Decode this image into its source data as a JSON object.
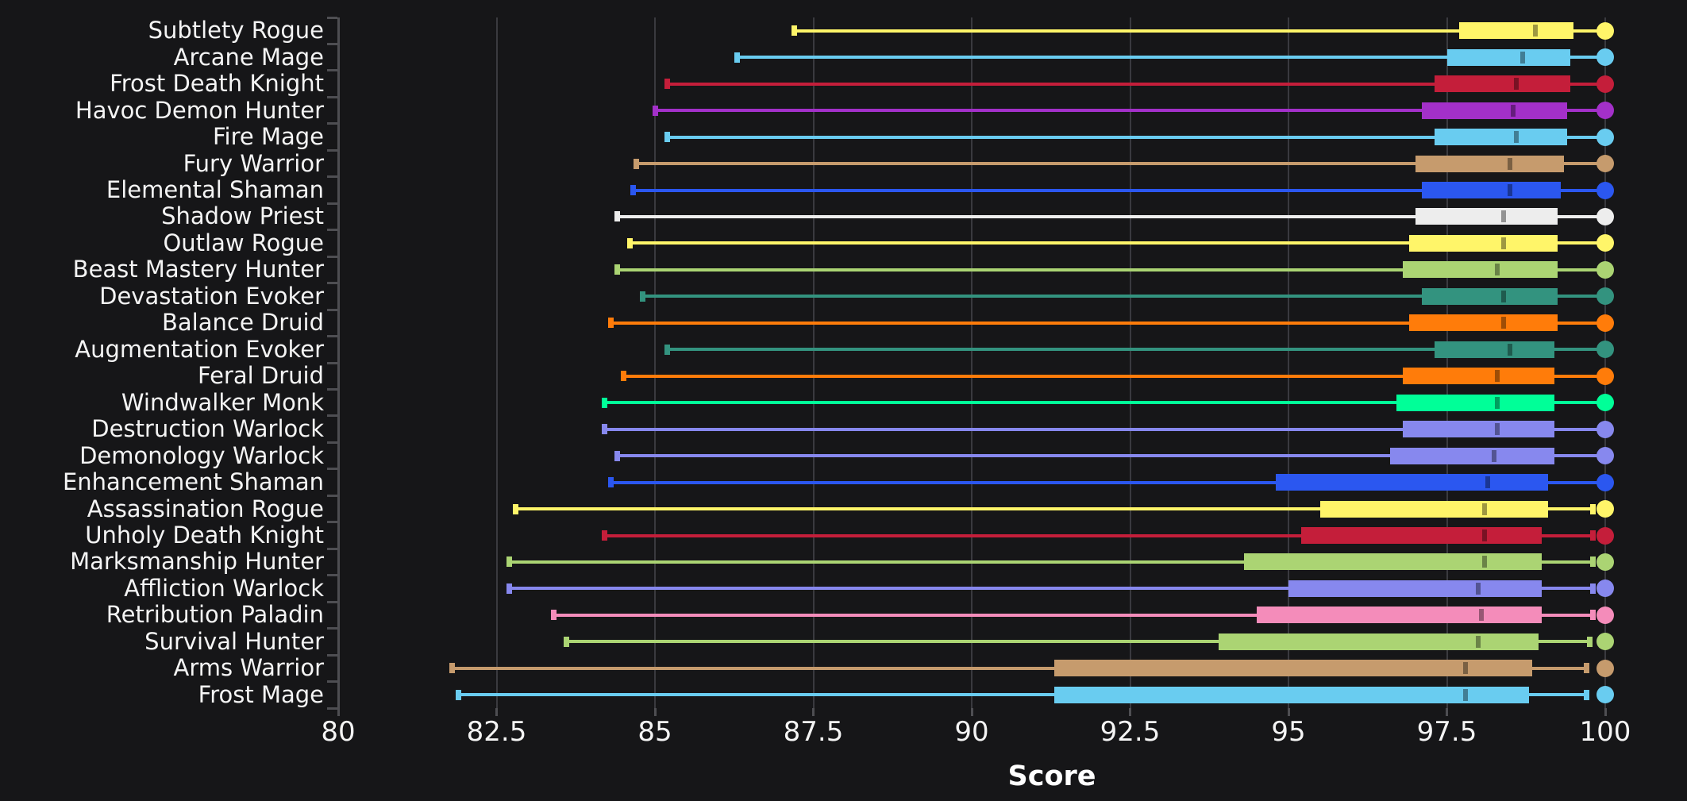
{
  "figure": {
    "background_color": "#161618",
    "grid_color": "#3a3a3f",
    "axis_color": "#4e4e52",
    "text_color": "#f4f4f4"
  },
  "chart_data": {
    "type": "boxplot",
    "orientation": "horizontal",
    "title": "",
    "xlabel": "Score",
    "ylabel": "",
    "x_ticks": [
      80,
      82.5,
      85,
      87.5,
      90,
      92.5,
      95,
      97.5,
      100
    ],
    "x_range": [
      80,
      101.3
    ],
    "grid": true,
    "legend": false,
    "rows": [
      {
        "label": "Subtlety Rogue",
        "color": "#FFF569",
        "min": 87.2,
        "q1": 97.7,
        "median": 98.9,
        "q3": 99.5,
        "whisker_high": 100,
        "max": 100
      },
      {
        "label": "Arcane Mage",
        "color": "#69CCF0",
        "min": 86.3,
        "q1": 97.5,
        "median": 98.7,
        "q3": 99.45,
        "whisker_high": 100,
        "max": 100
      },
      {
        "label": "Frost Death Knight",
        "color": "#C41E3A",
        "min": 85.2,
        "q1": 97.3,
        "median": 98.6,
        "q3": 99.45,
        "whisker_high": 100,
        "max": 100
      },
      {
        "label": "Havoc Demon Hunter",
        "color": "#A330C9",
        "min": 85.0,
        "q1": 97.1,
        "median": 98.55,
        "q3": 99.4,
        "whisker_high": 100,
        "max": 100
      },
      {
        "label": "Fire Mage",
        "color": "#69CCF0",
        "min": 85.2,
        "q1": 97.3,
        "median": 98.6,
        "q3": 99.4,
        "whisker_high": 100,
        "max": 100
      },
      {
        "label": "Fury Warrior",
        "color": "#C69B6D",
        "min": 84.7,
        "q1": 97.0,
        "median": 98.5,
        "q3": 99.35,
        "whisker_high": 100,
        "max": 100
      },
      {
        "label": "Elemental Shaman",
        "color": "#2B57F0",
        "min": 84.65,
        "q1": 97.1,
        "median": 98.5,
        "q3": 99.3,
        "whisker_high": 100,
        "max": 100
      },
      {
        "label": "Shadow Priest",
        "color": "#EDEDED",
        "min": 84.4,
        "q1": 97.0,
        "median": 98.4,
        "q3": 99.25,
        "whisker_high": 100,
        "max": 100
      },
      {
        "label": "Outlaw Rogue",
        "color": "#FFF569",
        "min": 84.6,
        "q1": 96.9,
        "median": 98.4,
        "q3": 99.25,
        "whisker_high": 100,
        "max": 100
      },
      {
        "label": "Beast Mastery Hunter",
        "color": "#ABD473",
        "min": 84.4,
        "q1": 96.8,
        "median": 98.3,
        "q3": 99.25,
        "whisker_high": 100,
        "max": 100
      },
      {
        "label": "Devastation Evoker",
        "color": "#33937F",
        "min": 84.8,
        "q1": 97.1,
        "median": 98.4,
        "q3": 99.25,
        "whisker_high": 100,
        "max": 100
      },
      {
        "label": "Balance Druid",
        "color": "#FF7C0A",
        "min": 84.3,
        "q1": 96.9,
        "median": 98.4,
        "q3": 99.25,
        "whisker_high": 100,
        "max": 100
      },
      {
        "label": "Augmentation Evoker",
        "color": "#33937F",
        "min": 85.2,
        "q1": 97.3,
        "median": 98.5,
        "q3": 99.2,
        "whisker_high": 100,
        "max": 100
      },
      {
        "label": "Feral Druid",
        "color": "#FF7C0A",
        "min": 84.5,
        "q1": 96.8,
        "median": 98.3,
        "q3": 99.2,
        "whisker_high": 100,
        "max": 100
      },
      {
        "label": "Windwalker Monk",
        "color": "#00FF98",
        "min": 84.2,
        "q1": 96.7,
        "median": 98.3,
        "q3": 99.2,
        "whisker_high": 100,
        "max": 100
      },
      {
        "label": "Destruction Warlock",
        "color": "#8788EE",
        "min": 84.2,
        "q1": 96.8,
        "median": 98.3,
        "q3": 99.2,
        "whisker_high": 100,
        "max": 100
      },
      {
        "label": "Demonology Warlock",
        "color": "#8788EE",
        "min": 84.4,
        "q1": 96.6,
        "median": 98.25,
        "q3": 99.2,
        "whisker_high": 100,
        "max": 100
      },
      {
        "label": "Enhancement Shaman",
        "color": "#2B57F0",
        "min": 84.3,
        "q1": 94.8,
        "median": 98.15,
        "q3": 99.1,
        "whisker_high": 100,
        "max": 100
      },
      {
        "label": "Assassination Rogue",
        "color": "#FFF569",
        "min": 82.8,
        "q1": 95.5,
        "median": 98.1,
        "q3": 99.1,
        "whisker_high": 99.8,
        "max": 100
      },
      {
        "label": "Unholy Death Knight",
        "color": "#C41E3A",
        "min": 84.2,
        "q1": 95.2,
        "median": 98.1,
        "q3": 99.0,
        "whisker_high": 99.8,
        "max": 100
      },
      {
        "label": "Marksmanship Hunter",
        "color": "#ABD473",
        "min": 82.7,
        "q1": 94.3,
        "median": 98.1,
        "q3": 99.0,
        "whisker_high": 99.8,
        "max": 100
      },
      {
        "label": "Affliction Warlock",
        "color": "#8788EE",
        "min": 82.7,
        "q1": 95.0,
        "median": 98.0,
        "q3": 99.0,
        "whisker_high": 99.8,
        "max": 100
      },
      {
        "label": "Retribution Paladin",
        "color": "#F48CBA",
        "min": 83.4,
        "q1": 94.5,
        "median": 98.05,
        "q3": 99.0,
        "whisker_high": 99.8,
        "max": 100
      },
      {
        "label": "Survival Hunter",
        "color": "#ABD473",
        "min": 83.6,
        "q1": 93.9,
        "median": 98.0,
        "q3": 98.95,
        "whisker_high": 99.75,
        "max": 100
      },
      {
        "label": "Arms Warrior",
        "color": "#C69B6D",
        "min": 81.8,
        "q1": 91.3,
        "median": 97.8,
        "q3": 98.85,
        "whisker_high": 99.7,
        "max": 100
      },
      {
        "label": "Frost Mage",
        "color": "#69CCF0",
        "min": 81.9,
        "q1": 91.3,
        "median": 97.8,
        "q3": 98.8,
        "whisker_high": 99.7,
        "max": 100
      }
    ]
  }
}
